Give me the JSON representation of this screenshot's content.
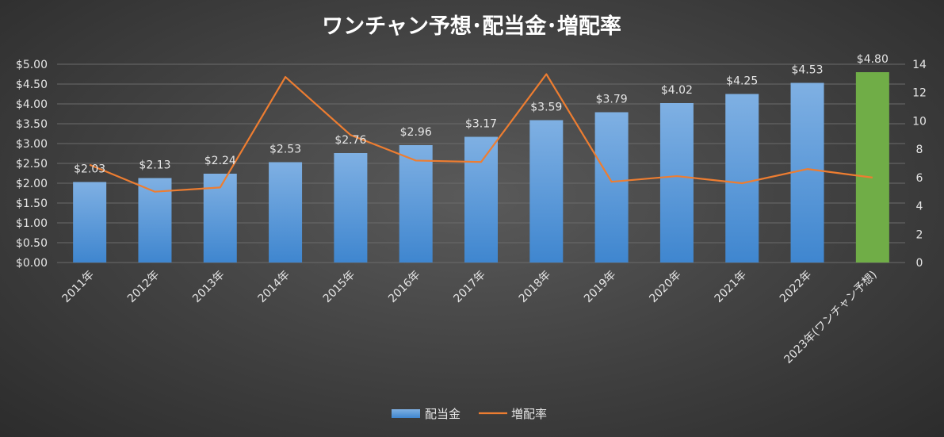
{
  "chart_data": {
    "type": "bar",
    "title": "ワンチャン予想･配当金･増配率",
    "categories": [
      "2011年",
      "2012年",
      "2013年",
      "2014年",
      "2015年",
      "2016年",
      "2017年",
      "2018年",
      "2019年",
      "2020年",
      "2021年",
      "2022年",
      "2023年(ワンチャン予想)"
    ],
    "series": [
      {
        "name": "配当金",
        "type": "bar",
        "axis": "left",
        "values": [
          2.03,
          2.13,
          2.24,
          2.53,
          2.76,
          2.96,
          3.17,
          3.59,
          3.79,
          4.02,
          4.25,
          4.53,
          4.8
        ],
        "labels": [
          "$2.03",
          "$2.13",
          "$2.24",
          "$2.53",
          "$2.76",
          "$2.96",
          "$3.17",
          "$3.59",
          "$3.79",
          "$4.02",
          "$4.25",
          "$4.53",
          "$4.80"
        ],
        "color": "#5b9bd5",
        "highlight_last_color": "#70ad47"
      },
      {
        "name": "増配率",
        "type": "line",
        "axis": "right",
        "values": [
          6.9,
          5.0,
          5.3,
          13.1,
          9.0,
          7.2,
          7.1,
          13.3,
          5.7,
          6.1,
          5.6,
          6.6,
          6.0
        ],
        "color": "#ed7d31"
      }
    ],
    "y_left": {
      "ylim": [
        0,
        5
      ],
      "ticks": [
        "$0.00",
        "$0.50",
        "$1.00",
        "$1.50",
        "$2.00",
        "$2.50",
        "$3.00",
        "$3.50",
        "$4.00",
        "$4.50",
        "$5.00"
      ]
    },
    "y_right": {
      "ylim": [
        0,
        14
      ],
      "ticks": [
        "0",
        "2",
        "4",
        "6",
        "8",
        "10",
        "12",
        "14"
      ]
    },
    "grid": true,
    "legend": "bottom"
  }
}
